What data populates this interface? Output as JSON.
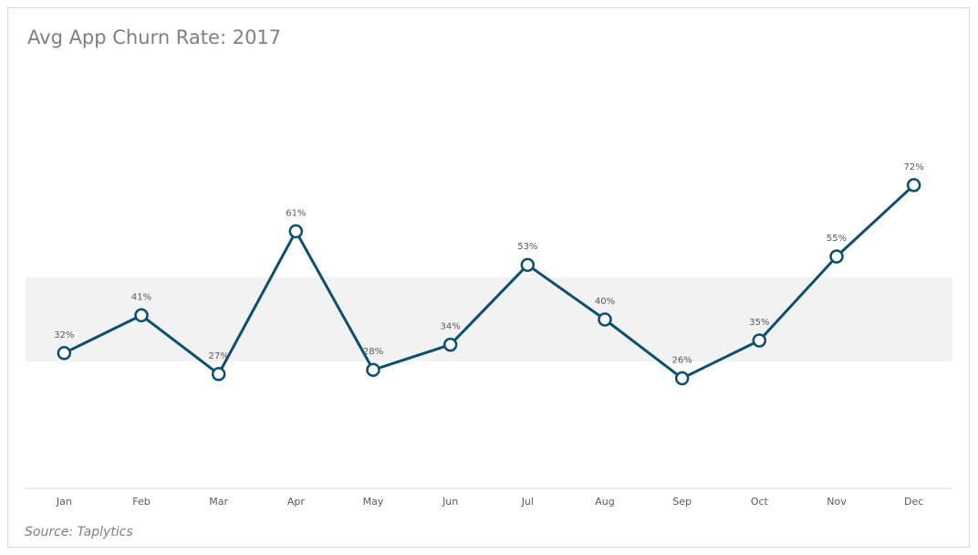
{
  "chart_data": {
    "type": "line",
    "title": "Avg App Churn Rate: 2017",
    "source": "Source: Taplytics",
    "categories": [
      "Jan",
      "Feb",
      "Mar",
      "Apr",
      "May",
      "Jun",
      "Jul",
      "Aug",
      "Sep",
      "Oct",
      "Nov",
      "Dec"
    ],
    "values": [
      32,
      41,
      27,
      61,
      28,
      34,
      53,
      40,
      26,
      35,
      55,
      72
    ],
    "value_labels": [
      "32%",
      "41%",
      "27%",
      "61%",
      "28%",
      "34%",
      "53%",
      "40%",
      "26%",
      "35%",
      "55%",
      "72%"
    ],
    "color": "#0d4f6e",
    "band": [
      30,
      50
    ],
    "band_color": "#f2f2f2",
    "ylim": [
      0,
      100
    ]
  }
}
